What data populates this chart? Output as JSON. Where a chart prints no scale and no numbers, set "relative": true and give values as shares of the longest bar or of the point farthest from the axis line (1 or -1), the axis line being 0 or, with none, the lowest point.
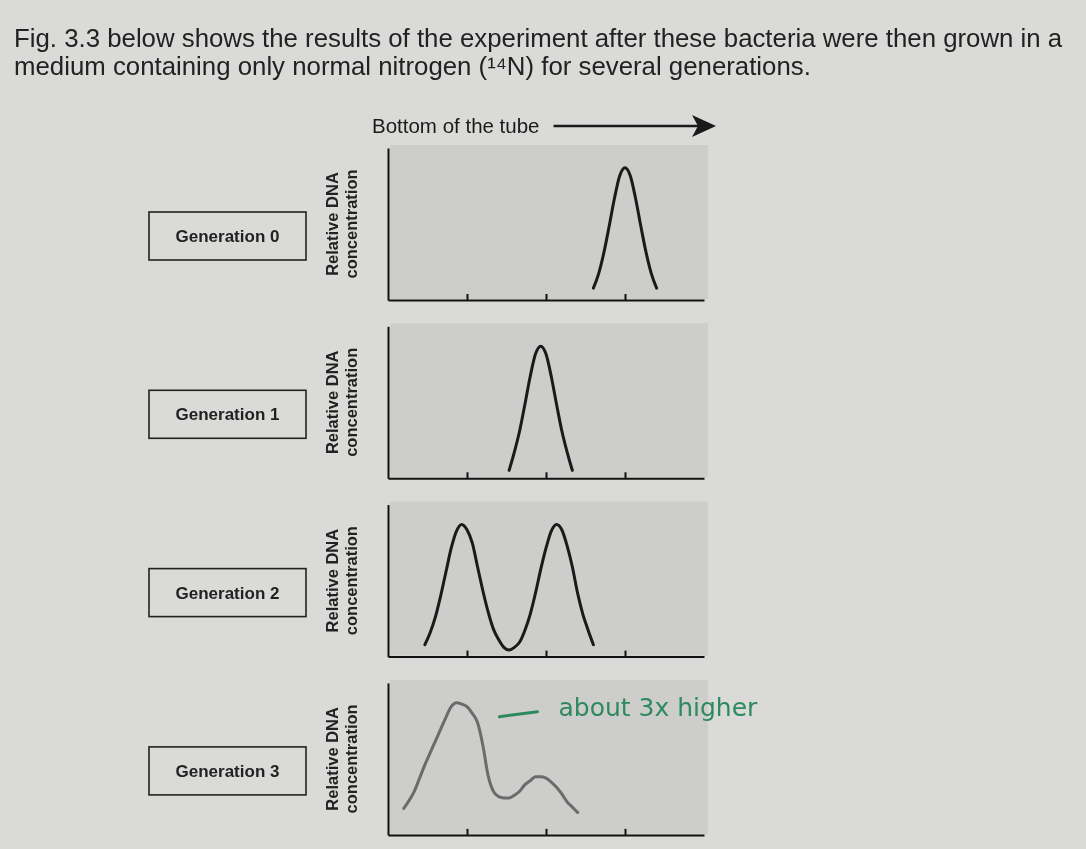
{
  "chart_data": [
    {
      "type": "line",
      "xlabel": "Bottom of the tube",
      "ylabel": "Relative DNA concentration",
      "annotations": [
        "Generation 0",
        "Fig. 3.3 below shows the results of the experiment after these bacteria were then grown in a medium containing only normal nitrogen (¹⁴N) for several generations."
      ],
      "relative": true,
      "color": "#1a1a1a",
      "categories": [
        null,
        null,
        null,
        null,
        null,
        null,
        null,
        null,
        null,
        null,
        null,
        null,
        null,
        null,
        null,
        null,
        null,
        null,
        null,
        null,
        null,
        null,
        null,
        null,
        null,
        null,
        null,
        null,
        null,
        null,
        null,
        null,
        null,
        null,
        null,
        null,
        null,
        null,
        null,
        null,
        null,
        null,
        null,
        null,
        null,
        null,
        null,
        null,
        null,
        null,
        null,
        null,
        null,
        null,
        null,
        null,
        null,
        null,
        null,
        null,
        null
      ],
      "values": [
        null,
        null,
        null,
        null,
        null,
        null,
        null,
        null,
        null,
        null,
        null,
        null,
        null,
        null,
        null,
        null,
        null,
        null,
        null,
        null,
        null,
        null,
        null,
        null,
        null,
        null,
        null,
        null,
        null,
        null,
        null,
        null,
        null,
        null,
        null,
        null,
        null,
        null,
        null,
        0.09,
        0.2,
        0.36,
        0.56,
        0.77,
        0.94,
        1,
        0.94,
        0.77,
        0.56,
        0.36,
        0.2,
        0.09,
        null,
        null,
        null,
        null,
        null,
        null,
        null,
        null,
        null
      ]
    },
    {
      "type": "line",
      "ylabel": "Relative DNA concentration",
      "annotations": [
        "Generation 1"
      ],
      "relative": true,
      "color": "#1a1a1a",
      "categories": [
        null,
        null,
        null,
        null,
        null,
        null,
        null,
        null,
        null,
        null,
        null,
        null,
        null,
        null,
        null,
        null,
        null,
        null,
        null,
        null,
        null,
        null,
        null,
        null,
        null,
        null,
        null,
        null,
        null,
        null,
        null,
        null,
        null,
        null,
        null,
        null,
        null,
        null,
        null,
        null,
        null,
        null,
        null,
        null,
        null,
        null,
        null,
        null,
        null,
        null,
        null,
        null,
        null,
        null,
        null,
        null,
        null,
        null,
        null,
        null,
        null
      ],
      "values": [
        null,
        null,
        null,
        null,
        null,
        null,
        null,
        null,
        null,
        null,
        null,
        null,
        null,
        null,
        null,
        null,
        null,
        null,
        null,
        null,
        null,
        null,
        null,
        0.06,
        0.2,
        0.36,
        0.56,
        0.77,
        0.94,
        1,
        0.94,
        0.77,
        0.56,
        0.36,
        0.2,
        0.06,
        null,
        null,
        null,
        null,
        null,
        null,
        null,
        null,
        null,
        null,
        null,
        null,
        null,
        null,
        null,
        null,
        null,
        null,
        null,
        null,
        null,
        null,
        null,
        null,
        null
      ]
    },
    {
      "type": "line",
      "ylabel": "Relative DNA concentration",
      "annotations": [
        "Generation 2"
      ],
      "relative": true,
      "color": "#1a1a1a",
      "categories": [
        null,
        null,
        null,
        null,
        null,
        null,
        null,
        null,
        null,
        null,
        null,
        null,
        null,
        null,
        null,
        null,
        null,
        null,
        null,
        null,
        null,
        null,
        null,
        null,
        null,
        null,
        null,
        null,
        null,
        null,
        null,
        null,
        null,
        null,
        null,
        null,
        null,
        null,
        null,
        null,
        null,
        null,
        null,
        null,
        null,
        null,
        null,
        null,
        null,
        null,
        null,
        null,
        null,
        null,
        null,
        null,
        null,
        null,
        null,
        null,
        null
      ],
      "values": [
        null,
        null,
        null,
        null,
        null,
        null,
        null,
        0.09,
        0.18,
        0.3,
        0.46,
        0.64,
        0.82,
        0.95,
        1,
        0.96,
        0.86,
        0.68,
        0.5,
        0.34,
        0.21,
        0.13,
        0.07,
        0.05,
        0.07,
        0.11,
        0.2,
        0.32,
        0.48,
        0.66,
        0.82,
        0.95,
        1,
        0.96,
        0.84,
        0.68,
        0.48,
        0.32,
        0.2,
        0.09,
        null,
        null,
        null,
        null,
        null,
        null,
        null,
        null,
        null,
        null,
        null,
        null,
        null,
        null,
        null,
        null,
        null,
        null,
        null,
        null,
        null
      ]
    },
    {
      "type": "line",
      "ylabel": "Relative DNA concentration",
      "annotations": [
        "Generation 3",
        "about 3x higher"
      ],
      "relative": true,
      "color": "#6b6b6b",
      "categories": [
        null,
        null,
        null,
        null,
        null,
        null,
        null,
        null,
        null,
        null,
        null,
        null,
        null,
        null,
        null,
        null,
        null,
        null,
        null,
        null,
        null,
        null,
        null,
        null,
        null,
        null,
        null,
        null,
        null,
        null,
        null,
        null,
        null,
        null,
        null,
        null,
        null,
        null,
        null,
        null,
        null,
        null,
        null,
        null,
        null,
        null,
        null,
        null,
        null,
        null,
        null,
        null,
        null,
        null,
        null,
        null,
        null,
        null,
        null,
        null,
        null
      ],
      "values": [
        null,
        null,
        null,
        0.2,
        0.26,
        0.33,
        0.43,
        0.53,
        0.62,
        0.71,
        0.8,
        0.89,
        0.97,
        1,
        0.99,
        0.97,
        0.92,
        0.85,
        0.68,
        0.45,
        0.33,
        0.29,
        0.28,
        0.28,
        0.3,
        0.33,
        0.38,
        0.41,
        0.44,
        0.44,
        0.43,
        0.4,
        0.36,
        0.31,
        0.25,
        0.21,
        0.17,
        null,
        null,
        null,
        null,
        null,
        null,
        null,
        null,
        null,
        null,
        null,
        null,
        null,
        null,
        null,
        null,
        null,
        null,
        null,
        null,
        null,
        null,
        null,
        null
      ]
    }
  ]
}
